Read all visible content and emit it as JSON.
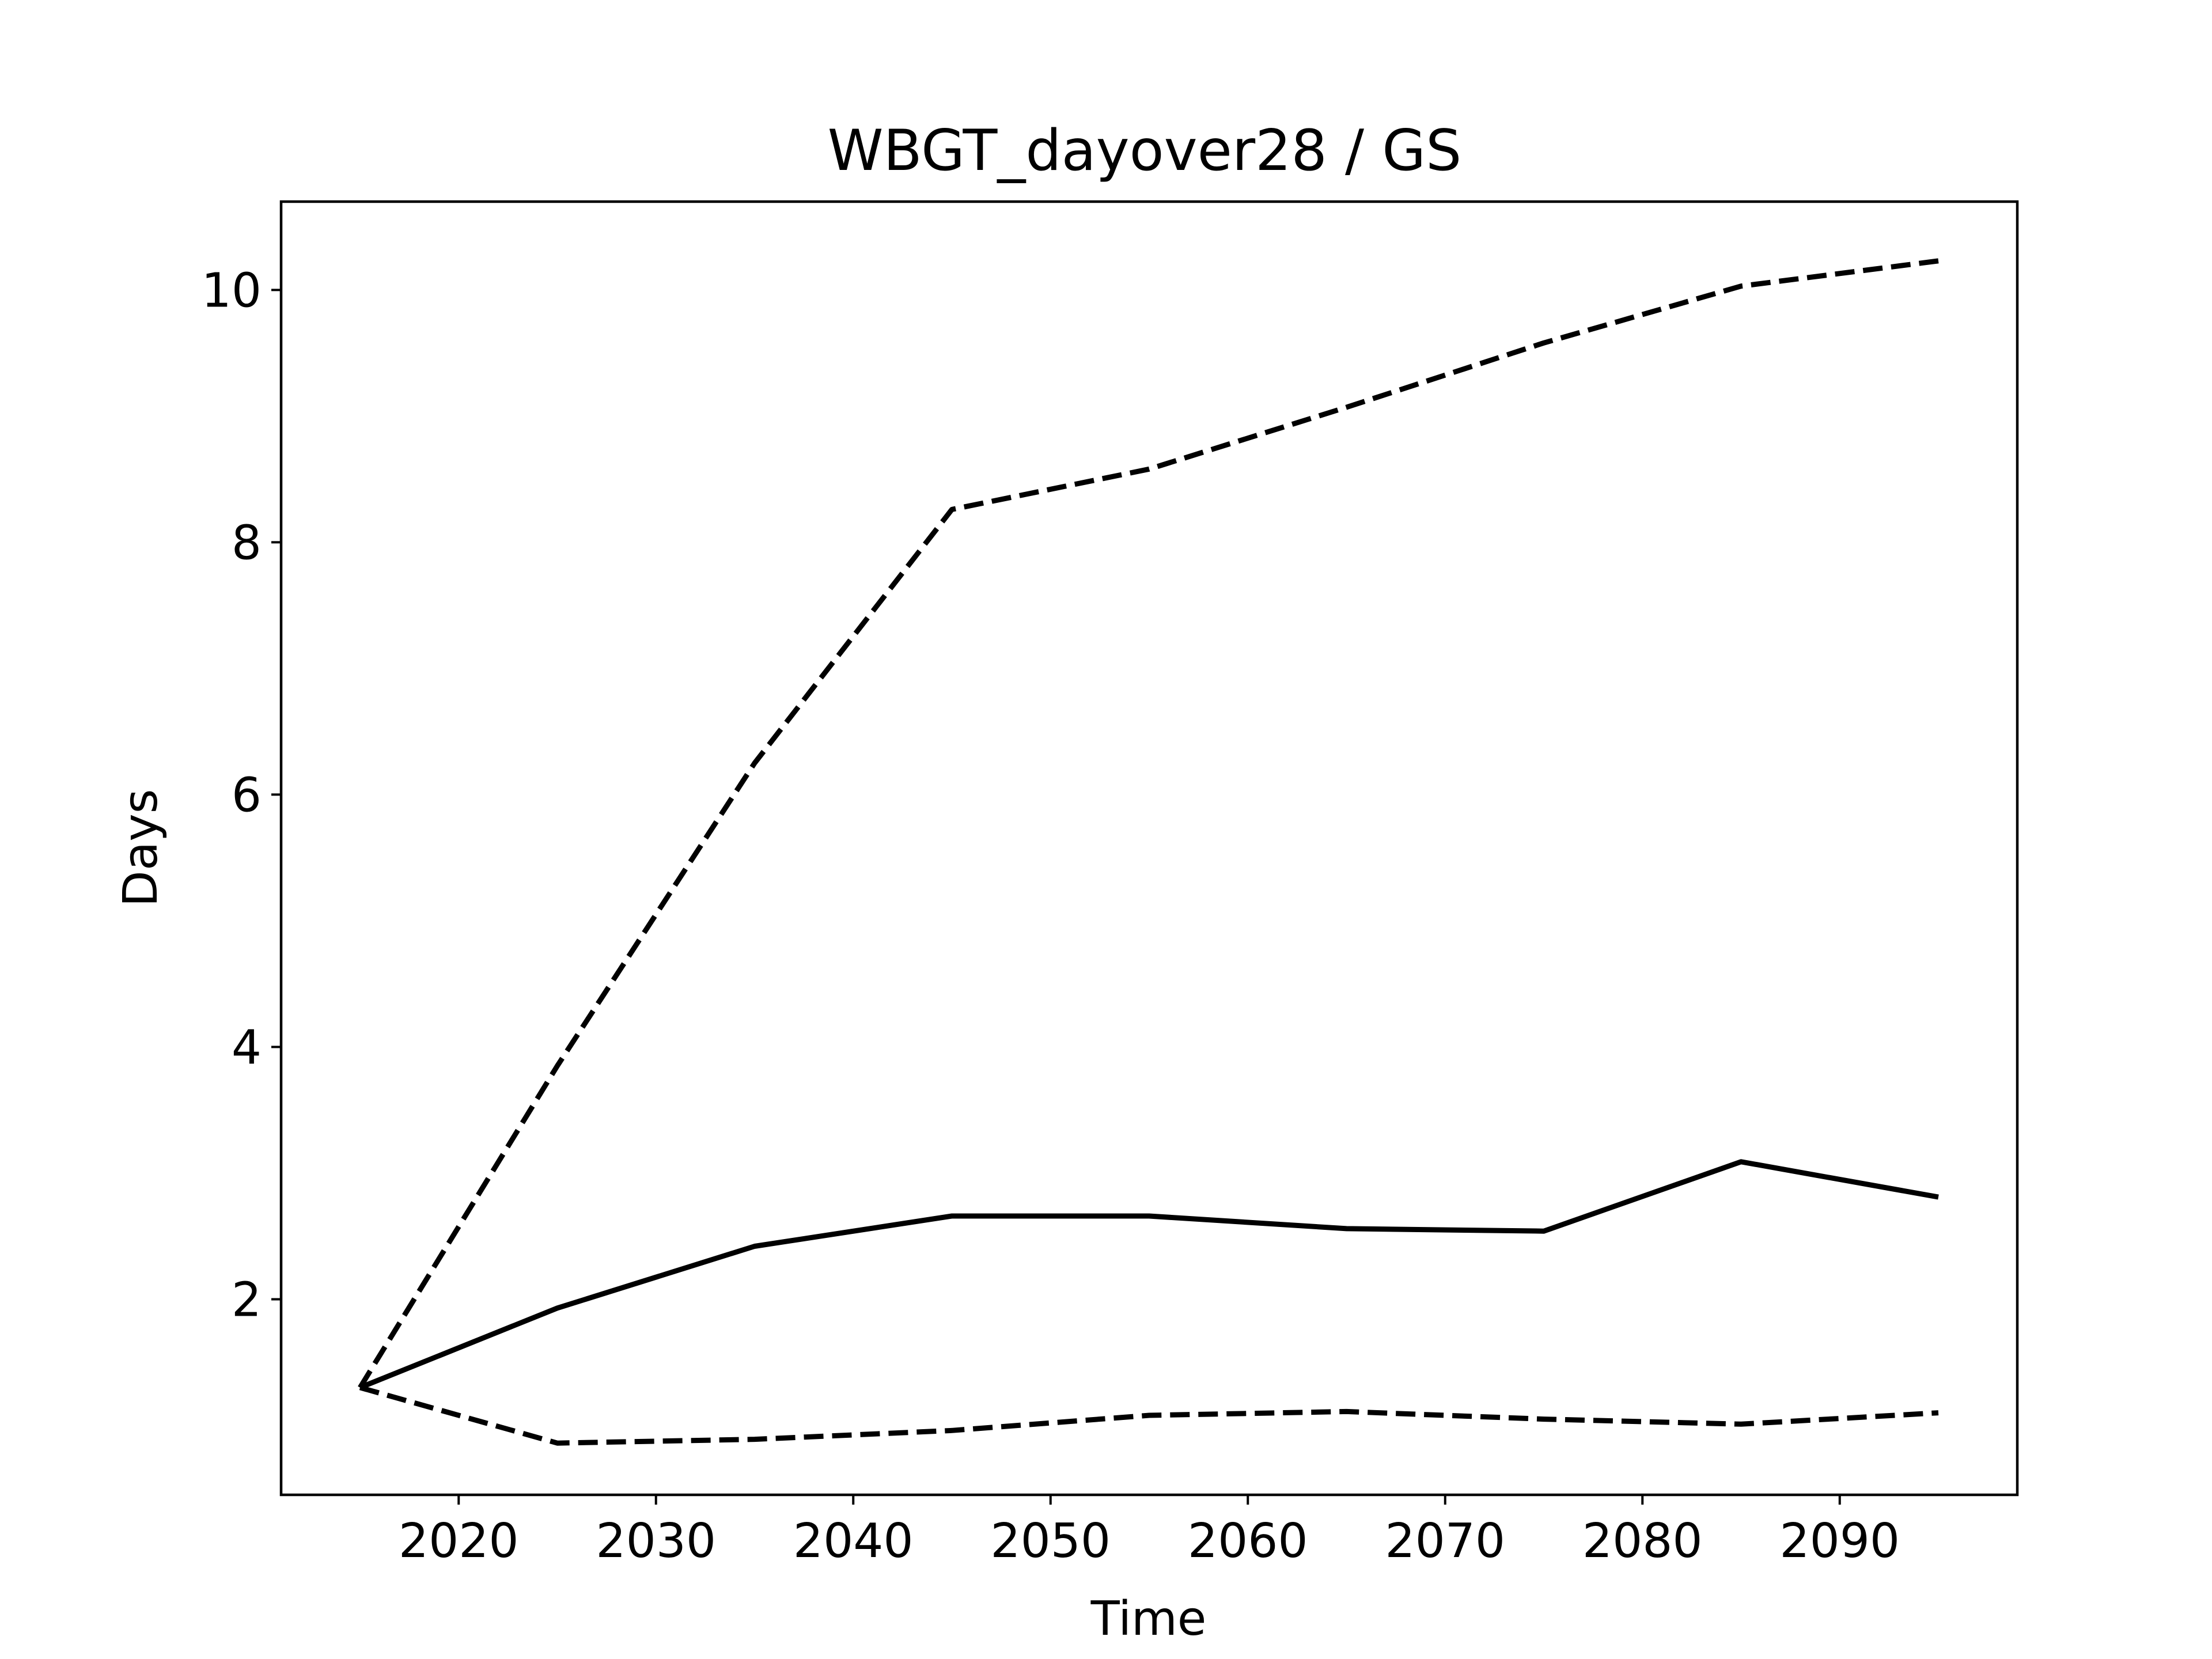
{
  "chart_data": {
    "type": "line",
    "title": "WBGT_dayover28 / GS",
    "xlabel": "Time",
    "ylabel": "Days",
    "xlim": [
      2011,
      2099
    ],
    "ylim": [
      0.45,
      10.7
    ],
    "xticks": [
      2020,
      2030,
      2040,
      2050,
      2060,
      2070,
      2080,
      2090
    ],
    "yticks": [
      2,
      4,
      6,
      8,
      10
    ],
    "grid": false,
    "legend": false,
    "x": [
      2015,
      2025,
      2035,
      2045,
      2055,
      2065,
      2075,
      2085,
      2095
    ],
    "series": [
      {
        "style": "solid",
        "color": "#000000",
        "values": [
          1.3,
          1.93,
          2.42,
          2.66,
          2.66,
          2.56,
          2.54,
          3.09,
          2.81
        ]
      },
      {
        "style": "dashed",
        "color": "#000000",
        "values": [
          1.3,
          3.85,
          6.25,
          8.26,
          8.58,
          9.07,
          9.58,
          10.03,
          10.23
        ]
      },
      {
        "style": "dashed",
        "color": "#000000",
        "values": [
          1.3,
          0.86,
          0.89,
          0.96,
          1.08,
          1.11,
          1.05,
          1.01,
          1.1
        ]
      }
    ]
  }
}
